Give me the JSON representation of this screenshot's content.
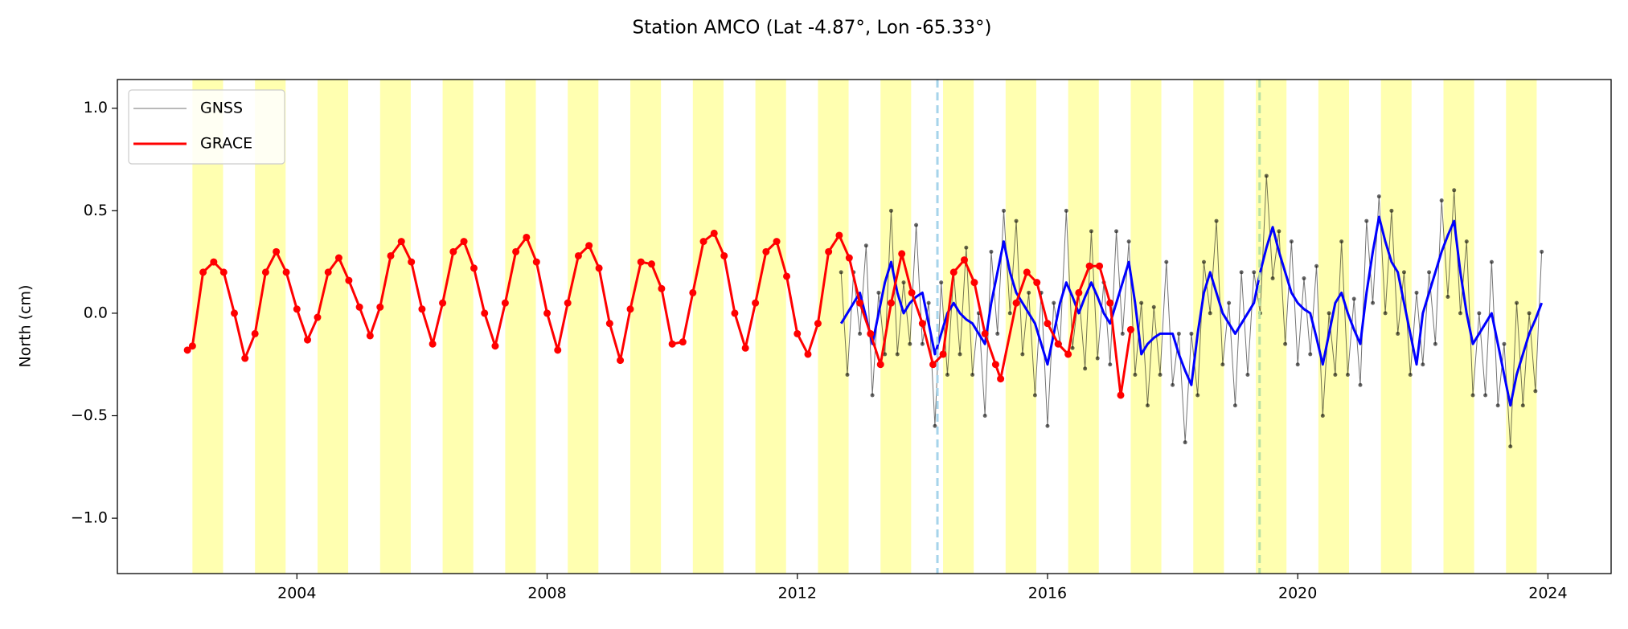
{
  "chart_data": {
    "type": "line",
    "title": "Station AMCO (Lat -4.87°, Lon -65.33°)",
    "y_label": "North (cm)",
    "xlim": [
      2001.13,
      2025.01
    ],
    "ylim": [
      -1.27,
      1.14
    ],
    "xticks": [
      2004,
      2008,
      2012,
      2016,
      2020,
      2024
    ],
    "yticks": [
      {
        "value": -1,
        "label": "−1.0"
      },
      {
        "value": -0.5,
        "label": "−0.5"
      },
      {
        "value": 0,
        "label": "0.0"
      },
      0.5,
      {
        "value": 1,
        "label": "1.0"
      }
    ],
    "legend": "upper left",
    "shaded_color": "#ffffb0",
    "shaded_spans": [
      [
        2002.33,
        2002.82
      ],
      [
        2003.33,
        2003.82
      ],
      [
        2004.33,
        2004.82
      ],
      [
        2005.33,
        2005.82
      ],
      [
        2006.33,
        2006.82
      ],
      [
        2007.33,
        2007.82
      ],
      [
        2008.33,
        2008.82
      ],
      [
        2009.33,
        2009.82
      ],
      [
        2010.33,
        2010.82
      ],
      [
        2011.33,
        2011.82
      ],
      [
        2012.33,
        2012.82
      ],
      [
        2013.33,
        2013.82
      ],
      [
        2014.33,
        2014.82
      ],
      [
        2015.33,
        2015.82
      ],
      [
        2016.33,
        2016.82
      ],
      [
        2017.33,
        2017.82
      ],
      [
        2018.33,
        2018.82
      ],
      [
        2019.33,
        2019.82
      ],
      [
        2020.33,
        2020.82
      ],
      [
        2021.33,
        2021.82
      ],
      [
        2022.33,
        2022.82
      ],
      [
        2023.33,
        2023.82
      ]
    ],
    "vlines": [
      {
        "x": 2014.24,
        "color": "#a6d4ea"
      },
      {
        "x": 2019.39,
        "color": "#b9e0a5"
      }
    ],
    "series": [
      {
        "name": "GNSS",
        "color": "#000000",
        "x": [
          2012.7,
          2012.8,
          2012.9,
          2013.0,
          2013.1,
          2013.2,
          2013.3,
          2013.4,
          2013.5,
          2013.6,
          2013.7,
          2013.8,
          2013.9,
          2014.0,
          2014.1,
          2014.2,
          2014.3,
          2014.4,
          2014.5,
          2014.6,
          2014.7,
          2014.8,
          2014.9,
          2015.0,
          2015.1,
          2015.2,
          2015.3,
          2015.4,
          2015.5,
          2015.6,
          2015.7,
          2015.8,
          2015.9,
          2016.0,
          2016.1,
          2016.2,
          2016.3,
          2016.4,
          2016.5,
          2016.6,
          2016.7,
          2016.8,
          2016.9,
          2017.0,
          2017.1,
          2017.2,
          2017.3,
          2017.4,
          2017.5,
          2017.6,
          2017.7,
          2017.8,
          2017.9,
          2018.0,
          2018.1,
          2018.2,
          2018.3,
          2018.4,
          2018.5,
          2018.6,
          2018.7,
          2018.8,
          2018.9,
          2019.0,
          2019.1,
          2019.2,
          2019.3,
          2019.4,
          2019.5,
          2019.6,
          2019.7,
          2019.8,
          2019.9,
          2020.0,
          2020.1,
          2020.2,
          2020.3,
          2020.4,
          2020.5,
          2020.6,
          2020.7,
          2020.8,
          2020.9,
          2021.0,
          2021.1,
          2021.2,
          2021.3,
          2021.4,
          2021.5,
          2021.6,
          2021.7,
          2021.8,
          2021.9,
          2022.0,
          2022.1,
          2022.2,
          2022.3,
          2022.4,
          2022.5,
          2022.6,
          2022.7,
          2022.8,
          2022.9,
          2023.0,
          2023.1,
          2023.2,
          2023.3,
          2023.4,
          2023.5,
          2023.6,
          2023.7,
          2023.8,
          2023.9
        ],
        "values": [
          0.2,
          -0.3,
          0.2,
          -0.1,
          0.33,
          -0.4,
          0.1,
          -0.2,
          0.5,
          -0.2,
          0.15,
          -0.15,
          0.43,
          -0.15,
          0.05,
          -0.55,
          0.15,
          -0.3,
          0.2,
          -0.2,
          0.32,
          -0.3,
          0.0,
          -0.5,
          0.3,
          -0.1,
          0.5,
          0.0,
          0.45,
          -0.2,
          0.1,
          -0.4,
          0.1,
          -0.55,
          0.05,
          -0.15,
          0.5,
          -0.17,
          0.1,
          -0.27,
          0.4,
          -0.22,
          0.15,
          -0.25,
          0.4,
          -0.1,
          0.35,
          -0.3,
          0.05,
          -0.45,
          0.03,
          -0.3,
          0.25,
          -0.35,
          -0.1,
          -0.63,
          -0.1,
          -0.4,
          0.25,
          0.0,
          0.45,
          -0.25,
          0.05,
          -0.45,
          0.2,
          -0.3,
          0.2,
          0.0,
          0.67,
          0.17,
          0.4,
          -0.15,
          0.35,
          -0.25,
          0.17,
          -0.2,
          0.23,
          -0.5,
          0.0,
          -0.3,
          0.35,
          -0.3,
          0.07,
          -0.35,
          0.45,
          0.05,
          0.57,
          0.0,
          0.5,
          -0.1,
          0.2,
          -0.3,
          0.1,
          -0.25,
          0.2,
          -0.15,
          0.55,
          0.08,
          0.6,
          0.0,
          0.35,
          -0.4,
          0.0,
          -0.4,
          0.25,
          -0.45,
          -0.15,
          -0.65,
          0.05,
          -0.45,
          0.0,
          -0.38,
          0.3
        ]
      },
      {
        "name": "GRACE",
        "color": "#ff0000",
        "x": [
          2002.25,
          2002.33,
          2002.5,
          2002.67,
          2002.83,
          2003.0,
          2003.17,
          2003.33,
          2003.5,
          2003.67,
          2003.83,
          2004.0,
          2004.17,
          2004.33,
          2004.5,
          2004.67,
          2004.83,
          2005.0,
          2005.17,
          2005.33,
          2005.5,
          2005.67,
          2005.83,
          2006.0,
          2006.17,
          2006.33,
          2006.5,
          2006.67,
          2006.83,
          2007.0,
          2007.17,
          2007.33,
          2007.5,
          2007.67,
          2007.83,
          2008.0,
          2008.17,
          2008.33,
          2008.5,
          2008.67,
          2008.83,
          2009.0,
          2009.17,
          2009.33,
          2009.5,
          2009.67,
          2009.83,
          2010.0,
          2010.17,
          2010.33,
          2010.5,
          2010.67,
          2010.83,
          2011.0,
          2011.17,
          2011.33,
          2011.5,
          2011.67,
          2011.83,
          2012.0,
          2012.17,
          2012.33,
          2012.5,
          2012.67,
          2012.83,
          2013.0,
          2013.17,
          2013.33,
          2013.5,
          2013.67,
          2013.83,
          2014.0,
          2014.17,
          2014.33,
          2014.5,
          2014.67,
          2014.83,
          2015.0,
          2015.17,
          2015.25,
          2015.5,
          2015.67,
          2015.83,
          2016.0,
          2016.17,
          2016.33,
          2016.5,
          2016.67,
          2016.83,
          2017.0,
          2017.17,
          2017.33
        ],
        "values": [
          -0.18,
          -0.16,
          0.2,
          0.25,
          0.2,
          0.0,
          -0.22,
          -0.1,
          0.2,
          0.3,
          0.2,
          0.02,
          -0.13,
          -0.02,
          0.2,
          0.27,
          0.16,
          0.03,
          -0.11,
          0.03,
          0.28,
          0.35,
          0.25,
          0.02,
          -0.15,
          0.05,
          0.3,
          0.35,
          0.22,
          0.0,
          -0.16,
          0.05,
          0.3,
          0.37,
          0.25,
          0.0,
          -0.18,
          0.05,
          0.28,
          0.33,
          0.22,
          -0.05,
          -0.23,
          0.02,
          0.25,
          0.24,
          0.12,
          -0.15,
          -0.14,
          0.1,
          0.35,
          0.39,
          0.28,
          0.0,
          -0.17,
          0.05,
          0.3,
          0.35,
          0.18,
          -0.1,
          -0.2,
          -0.05,
          0.3,
          0.38,
          0.27,
          0.05,
          -0.1,
          -0.25,
          0.05,
          0.29,
          0.1,
          -0.05,
          -0.25,
          -0.2,
          0.2,
          0.26,
          0.15,
          -0.1,
          -0.25,
          -0.32,
          0.05,
          0.2,
          0.15,
          -0.05,
          -0.15,
          -0.2,
          0.1,
          0.23,
          0.23,
          0.05,
          -0.4,
          -0.08
        ]
      }
    ],
    "smoothed": {
      "color": "#0000ff",
      "values": [
        -0.05,
        0.0,
        0.05,
        0.1,
        -0.02,
        -0.15,
        0.0,
        0.15,
        0.25,
        0.1,
        0.0,
        0.05,
        0.08,
        0.1,
        -0.05,
        -0.2,
        -0.1,
        0.0,
        0.05,
        0.0,
        -0.03,
        -0.05,
        -0.1,
        -0.15,
        0.05,
        0.2,
        0.35,
        0.2,
        0.1,
        0.05,
        0.0,
        -0.05,
        -0.15,
        -0.25,
        -0.1,
        0.05,
        0.15,
        0.08,
        0.0,
        0.08,
        0.15,
        0.08,
        0.0,
        -0.05,
        0.05,
        0.15,
        0.25,
        0.05,
        -0.2,
        -0.15,
        -0.12,
        -0.1,
        -0.1,
        -0.1,
        -0.2,
        -0.28,
        -0.35,
        -0.1,
        0.1,
        0.2,
        0.1,
        0.0,
        -0.05,
        -0.1,
        -0.05,
        0.0,
        0.05,
        0.2,
        0.32,
        0.42,
        0.3,
        0.2,
        0.1,
        0.05,
        0.02,
        0.0,
        -0.12,
        -0.25,
        -0.1,
        0.05,
        0.1,
        0.0,
        -0.08,
        -0.15,
        0.1,
        0.3,
        0.47,
        0.35,
        0.25,
        0.2,
        0.05,
        -0.1,
        -0.25,
        0.0,
        0.1,
        0.2,
        0.3,
        0.38,
        0.45,
        0.2,
        0.0,
        -0.15,
        -0.1,
        -0.05,
        0.0,
        -0.15,
        -0.3,
        -0.45,
        -0.3,
        -0.2,
        -0.1,
        -0.03,
        0.05
      ]
    }
  }
}
